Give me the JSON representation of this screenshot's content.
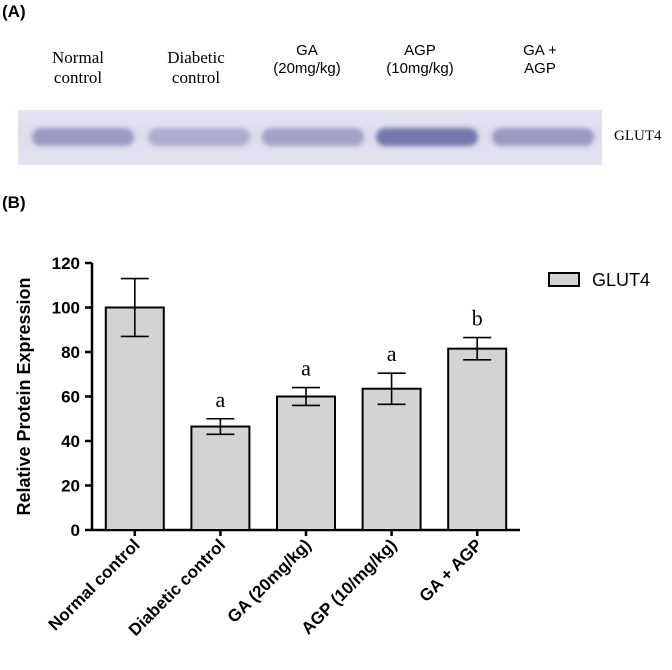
{
  "panel_a": {
    "label": "(A)",
    "lanes": [
      {
        "label": "Normal\ncontrol",
        "font": "serif"
      },
      {
        "label": "Diabetic\ncontrol",
        "font": "serif"
      },
      {
        "label": "GA\n(20mg/kg)",
        "font": "sans"
      },
      {
        "label": "AGP\n(10mg/kg)",
        "font": "sans"
      },
      {
        "label": "GA +\nAGP",
        "font": "sans"
      }
    ],
    "band_intensities": [
      0.62,
      0.45,
      0.55,
      0.95,
      0.62
    ],
    "protein_label": "GLUT4"
  },
  "panel_b": {
    "label": "(B)"
  },
  "colors": {
    "bar_fill": "#d3d3d3",
    "bar_stroke": "#000000",
    "band": "#7272a8"
  },
  "chart_data": {
    "type": "bar",
    "categories": [
      "Normal control",
      "Diabetic control",
      "GA (20mg/kg)",
      "AGP (10/mg/kg)",
      "GA + AGP"
    ],
    "series": [
      {
        "name": "GLUT4",
        "values": [
          100,
          46.5,
          60,
          63.5,
          81.5
        ],
        "error": [
          13,
          3.5,
          4,
          7,
          5
        ]
      }
    ],
    "significance": [
      "",
      "a",
      "a",
      "a",
      "b"
    ],
    "ylabel": "Relative Protein Expression",
    "xlabel": "",
    "ylim": [
      0,
      120
    ],
    "yticks": [
      0,
      20,
      40,
      60,
      80,
      100,
      120
    ],
    "legend_position": "top-right",
    "grid": false
  }
}
